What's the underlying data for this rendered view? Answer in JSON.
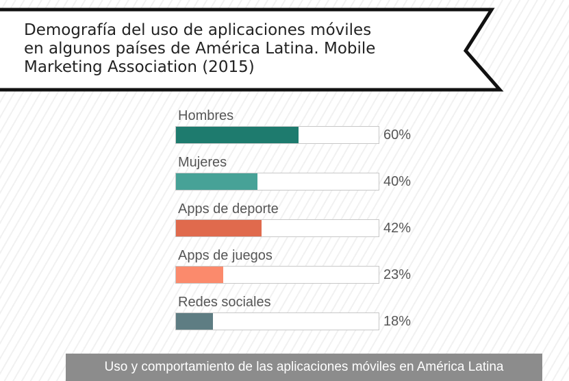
{
  "title_lines": [
    "Demografía del uso de aplicaciones móviles",
    "en algunos países de América Latina. Mobile",
    "Marketing Association (2015)"
  ],
  "footer": "Uso y comportamiento de las aplicaciones móviles en América Latina",
  "chart_data": {
    "type": "bar",
    "orientation": "horizontal",
    "categories": [
      "Hombres",
      "Mujeres",
      "Apps de deporte",
      "Apps de juegos",
      "Redes sociales"
    ],
    "values": [
      60,
      40,
      42,
      23,
      18
    ],
    "value_labels": [
      "60%",
      "40%",
      "42%",
      "23%",
      "18%"
    ],
    "colors": [
      "#1e7b6e",
      "#47a297",
      "#e06a4d",
      "#fb8a6c",
      "#5e7d83"
    ],
    "xlim": [
      0,
      100
    ],
    "grid": false,
    "legend": "none"
  }
}
